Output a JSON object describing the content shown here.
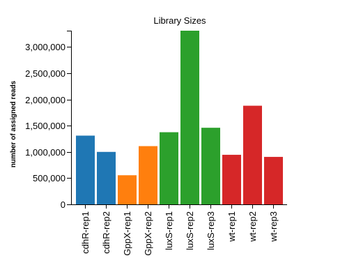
{
  "chart_data": {
    "type": "bar",
    "title": "Library Sizes",
    "xlabel": "",
    "ylabel": "number of assigned reads",
    "categories": [
      "cdhR-rep1",
      "cdhR-rep2",
      "GppX-rep1",
      "GppX-rep2",
      "luxS-rep1",
      "luxS-rep2",
      "luxS-rep3",
      "wt-rep1",
      "wt-rep2",
      "wt-rep3"
    ],
    "values": [
      1310000,
      1000000,
      555000,
      1110000,
      1375000,
      3310000,
      1460000,
      945000,
      1880000,
      905000
    ],
    "groups": [
      "cdhR",
      "cdhR",
      "GppX",
      "GppX",
      "luxS",
      "luxS",
      "luxS",
      "wt",
      "wt",
      "wt"
    ],
    "group_colors": {
      "cdhR": "#1f77b4",
      "GppX": "#ff7f0e",
      "luxS": "#2ca02c",
      "wt": "#d62728"
    },
    "ylim": [
      0,
      3310000
    ],
    "yticks": [
      0,
      500000,
      1000000,
      1500000,
      2000000,
      2500000,
      3000000
    ],
    "ytick_labels": [
      "0",
      "500,000",
      "1,000,000",
      "1,500,000",
      "2,000,000",
      "2,500,000",
      "3,000,000"
    ],
    "grid": false,
    "legend": "none"
  }
}
